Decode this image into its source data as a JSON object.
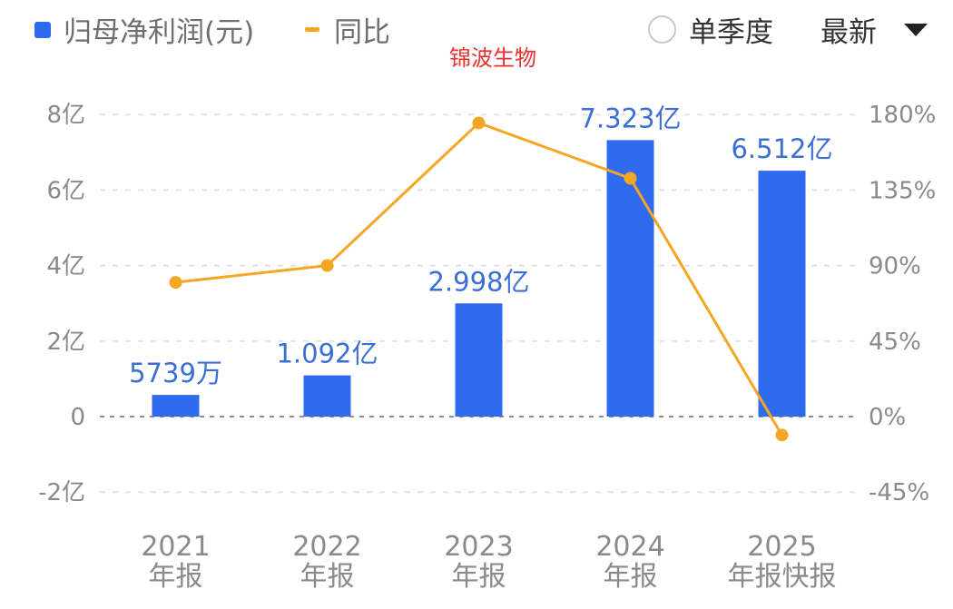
{
  "subject_name": "锦波生物",
  "legend": {
    "bar_label": "归母净利润(元)",
    "line_label": "同比"
  },
  "controls": {
    "quarter_label": "单季度",
    "quarter_checked": false,
    "sort_label": "最新"
  },
  "colors": {
    "bar": "#2f6af0",
    "line": "#f5a623",
    "subject": "#e8322f",
    "text_blue": "#3b6fd6"
  },
  "chart_data": {
    "type": "bar",
    "categories": [
      [
        "2021",
        "年报"
      ],
      [
        "2022",
        "年报"
      ],
      [
        "2023",
        "年报"
      ],
      [
        "2024",
        "年报"
      ],
      [
        "2025",
        "年报快报"
      ]
    ],
    "series": [
      {
        "name": "归母净利润(元)",
        "type": "bar",
        "axis": "left",
        "values": [
          57390000,
          109200000,
          299800000,
          732300000,
          651200000
        ],
        "labels": [
          "5739万",
          "1.092亿",
          "2.998亿",
          "7.323亿",
          "6.512亿"
        ]
      },
      {
        "name": "同比",
        "type": "line",
        "axis": "right",
        "values": [
          80,
          90,
          175,
          142,
          -11
        ]
      }
    ],
    "y_left": {
      "ticks": [
        -200000000,
        0,
        200000000,
        400000000,
        600000000,
        800000000
      ],
      "tick_labels": [
        "-2亿",
        "0",
        "2亿",
        "4亿",
        "6亿",
        "8亿"
      ],
      "lim": [
        -200000000,
        800000000
      ]
    },
    "y_right": {
      "ticks": [
        -45,
        0,
        45,
        90,
        135,
        180
      ],
      "tick_labels": [
        "-45%",
        "0%",
        "45%",
        "90%",
        "135%",
        "180%"
      ],
      "lim": [
        -45,
        180
      ]
    },
    "grid": true,
    "legend_position": "top-left"
  }
}
